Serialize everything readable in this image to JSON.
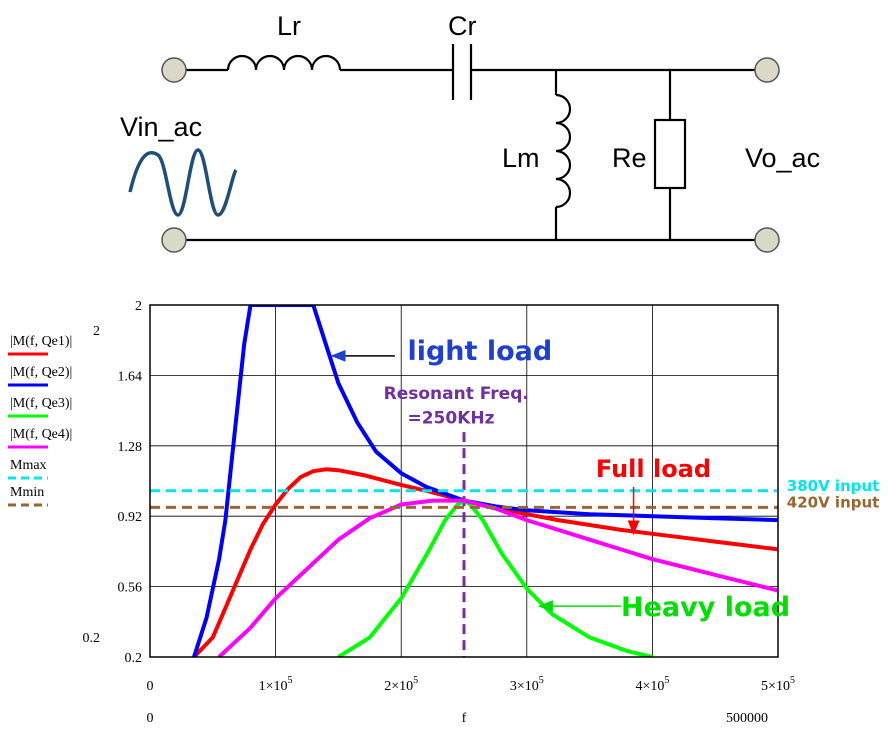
{
  "circuit": {
    "labels": {
      "lr": "Lr",
      "cr": "Cr",
      "lm": "Lm",
      "re": "Re",
      "vin": "Vin_ac",
      "vout": "Vo_ac"
    }
  },
  "chart_data": {
    "type": "line",
    "xlim": [
      0,
      500000
    ],
    "ylim": [
      0.2,
      2
    ],
    "x_ticks": [
      0,
      100000,
      200000,
      300000,
      400000,
      500000
    ],
    "x_tick_labels": [
      "0",
      "1×10",
      "2×10",
      "3×10",
      "4×10",
      "5×10"
    ],
    "x_tick_exponent": "5",
    "x_range_left_label": "0",
    "x_range_right_label": "500000",
    "xlabel": "f",
    "y_ticks": [
      0.2,
      0.56,
      0.92,
      1.28,
      1.64,
      2
    ],
    "y_tick_labels": [
      "0.2",
      "0.56",
      "0.92",
      "1.28",
      "1.64",
      "2"
    ],
    "y_range_top_label": "2",
    "y_range_bottom_label": "0.2",
    "grid": true,
    "legend_position": "left",
    "series": [
      {
        "name": "|M(f, Qe1)|",
        "color": "#ff0000",
        "points": [
          [
            35000,
            0.2
          ],
          [
            50000,
            0.3
          ],
          [
            60000,
            0.45
          ],
          [
            70000,
            0.6
          ],
          [
            80000,
            0.75
          ],
          [
            90000,
            0.88
          ],
          [
            100000,
            0.98
          ],
          [
            110000,
            1.06
          ],
          [
            120000,
            1.12
          ],
          [
            130000,
            1.15
          ],
          [
            140000,
            1.16
          ],
          [
            150000,
            1.155
          ],
          [
            170000,
            1.13
          ],
          [
            200000,
            1.08
          ],
          [
            220000,
            1.05
          ],
          [
            250000,
            1.0
          ],
          [
            275000,
            0.96
          ],
          [
            300000,
            0.93
          ],
          [
            325000,
            0.9
          ],
          [
            350000,
            0.875
          ],
          [
            375000,
            0.85
          ],
          [
            400000,
            0.83
          ],
          [
            425000,
            0.81
          ],
          [
            450000,
            0.79
          ],
          [
            475000,
            0.77
          ],
          [
            500000,
            0.75
          ]
        ]
      },
      {
        "name": "|M(f, Qe2)|",
        "color": "#0000ff",
        "points": [
          [
            35000,
            0.2
          ],
          [
            45000,
            0.4
          ],
          [
            55000,
            0.7
          ],
          [
            60000,
            0.9
          ],
          [
            65000,
            1.2
          ],
          [
            70000,
            1.5
          ],
          [
            75000,
            1.8
          ],
          [
            80000,
            2.0
          ],
          [
            130000,
            2.0
          ],
          [
            140000,
            1.8
          ],
          [
            150000,
            1.6
          ],
          [
            165000,
            1.4
          ],
          [
            180000,
            1.25
          ],
          [
            200000,
            1.14
          ],
          [
            220000,
            1.07
          ],
          [
            250000,
            1.0
          ],
          [
            275000,
            0.97
          ],
          [
            300000,
            0.95
          ],
          [
            350000,
            0.93
          ],
          [
            400000,
            0.92
          ],
          [
            450000,
            0.91
          ],
          [
            500000,
            0.9
          ]
        ]
      },
      {
        "name": "|M(f, Qe3)|",
        "color": "#00ff00",
        "points": [
          [
            150000,
            0.2
          ],
          [
            175000,
            0.3
          ],
          [
            200000,
            0.5
          ],
          [
            220000,
            0.72
          ],
          [
            235000,
            0.9
          ],
          [
            245000,
            0.98
          ],
          [
            250000,
            1.0
          ],
          [
            255000,
            0.98
          ],
          [
            265000,
            0.9
          ],
          [
            280000,
            0.73
          ],
          [
            300000,
            0.55
          ],
          [
            320000,
            0.42
          ],
          [
            350000,
            0.3
          ],
          [
            380000,
            0.23
          ],
          [
            400000,
            0.2
          ]
        ]
      },
      {
        "name": "|M(f, Qe4)|",
        "color": "#ff00ff",
        "points": [
          [
            55000,
            0.2
          ],
          [
            80000,
            0.35
          ],
          [
            100000,
            0.5
          ],
          [
            125000,
            0.65
          ],
          [
            150000,
            0.8
          ],
          [
            175000,
            0.91
          ],
          [
            200000,
            0.98
          ],
          [
            225000,
            1.0
          ],
          [
            250000,
            1.0
          ],
          [
            275000,
            0.96
          ],
          [
            300000,
            0.9
          ],
          [
            325000,
            0.85
          ],
          [
            350000,
            0.8
          ],
          [
            375000,
            0.75
          ],
          [
            400000,
            0.7
          ],
          [
            425000,
            0.66
          ],
          [
            450000,
            0.62
          ],
          [
            475000,
            0.58
          ],
          [
            500000,
            0.54
          ]
        ]
      },
      {
        "name": "Mmax",
        "color": "#00e5ee",
        "dashed": true,
        "points": [
          [
            0,
            1.05
          ],
          [
            500000,
            1.05
          ]
        ]
      },
      {
        "name": "Mmin",
        "color": "#996633",
        "dashed": true,
        "points": [
          [
            0,
            0.965
          ],
          [
            500000,
            0.965
          ]
        ]
      }
    ],
    "annotations": [
      {
        "text": "light load",
        "color": "#1f3fd1",
        "x": 205000,
        "y": 1.72,
        "size": 27,
        "arrow_to": [
          145000,
          1.74
        ],
        "arrow_from": [
          195000,
          1.74
        ]
      },
      {
        "text": "Resonant Freq.",
        "color": "#7030a0",
        "x": 186000,
        "y": 1.52,
        "size": 17
      },
      {
        "text": "=250KHz",
        "color": "#7030a0",
        "x": 205000,
        "y": 1.395,
        "size": 17
      },
      {
        "text": "Full load",
        "color": "#ff0000",
        "x": 355000,
        "y": 1.12,
        "size": 24,
        "arrow_to": [
          385000,
          0.83
        ],
        "arrow_from": [
          385000,
          1.07
        ]
      },
      {
        "text": "Heavy load",
        "color": "#00e000",
        "x": 375000,
        "y": 0.41,
        "size": 27,
        "arrow_to": [
          310000,
          0.46
        ],
        "arrow_from": [
          375000,
          0.46
        ]
      },
      {
        "text": "380V input",
        "color": "#00e5ee",
        "x": 507000,
        "y": 1.05,
        "size": 15
      },
      {
        "text": "420V input",
        "color": "#996633",
        "x": 507000,
        "y": 0.965,
        "size": 15
      }
    ],
    "resonant_line": {
      "x": 250000,
      "color": "#7030a0"
    }
  }
}
